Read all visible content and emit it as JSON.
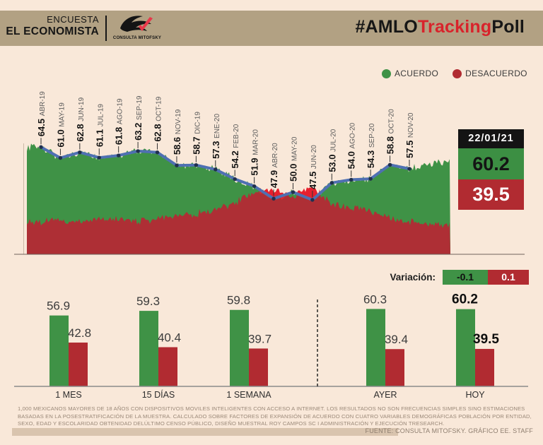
{
  "header": {
    "brand_top": "ENCUESTA",
    "brand_bottom": "EL ECONOMISTA",
    "logo_caption": "CONSULTA MITOFSKY",
    "hashtag": {
      "part1": "#AMLO",
      "part2": "Tracking",
      "part3": "Poll"
    }
  },
  "legend": [
    {
      "label": "ACUERDO",
      "color": "#3f9246"
    },
    {
      "label": "DESACUERDO",
      "color": "#b12b31"
    }
  ],
  "chart_data": {
    "type": "area",
    "title": "#AMLOTrackingPoll",
    "x": [
      "ABR-19",
      "MAY-19",
      "JUN-19",
      "JUL-19",
      "AGO-19",
      "SEP-19",
      "OCT-19",
      "NOV-19",
      "DIC-19",
      "ENE-20",
      "FEB-20",
      "MAR-20",
      "ABR-20",
      "MAY-20",
      "JUN-20",
      "JUL-20",
      "AGO-20",
      "SEP-20",
      "OCT-20",
      "NOV-20"
    ],
    "series": [
      {
        "name": "ACUERDO",
        "values": [
          64.5,
          61.0,
          62.8,
          61.1,
          61.8,
          63.2,
          62.8,
          58.6,
          58.7,
          57.3,
          54.2,
          51.9,
          47.9,
          50.0,
          47.5,
          53.0,
          54.0,
          54.3,
          58.8,
          57.5
        ]
      },
      {
        "name": "DESACUERDO",
        "values": [
          40.5,
          41.0,
          40.5,
          41.5,
          41.0,
          40.5,
          41.5,
          42.5,
          43.0,
          44.0,
          46.5,
          50.0,
          51.0,
          48.5,
          52.0,
          46.0,
          45.0,
          44.0,
          41.5,
          40.5
        ]
      }
    ],
    "end_values": {
      "acuerdo": 60.2,
      "desacuerdo": 39.5
    },
    "ylim": [
      30,
      70
    ],
    "legend_position": "top-right",
    "grid": false
  },
  "info_box": {
    "date": "22/01/21",
    "acuerdo": "60.2",
    "desacuerdo": "39.5"
  },
  "variation": {
    "label": "Variación:",
    "acuerdo": "-0.1",
    "desacuerdo": "0.1"
  },
  "bar_chart": {
    "type": "bar",
    "groups": [
      {
        "label": "1 MES",
        "acuerdo": 56.9,
        "desacuerdo": 42.8,
        "bold": false
      },
      {
        "label": "15 DÍAS",
        "acuerdo": 59.3,
        "desacuerdo": 40.4,
        "bold": false
      },
      {
        "label": "1 SEMANA",
        "acuerdo": 59.8,
        "desacuerdo": 39.7,
        "bold": false
      },
      {
        "label": "AYER",
        "acuerdo": 60.3,
        "desacuerdo": 39.4,
        "bold": false
      },
      {
        "label": "HOY",
        "acuerdo": 60.2,
        "desacuerdo": 39.5,
        "bold": true
      }
    ]
  },
  "footer": {
    "disclaimer_lines": [
      "1,000 MEXICANOS MAYORES DE 18 AÑOS CON DISPOSITIVOS MOVILES INTELIGENTES CON ACCESO A INTERNET. LOS RESULTADOS NO SON FRECUENCIAS SIMPLES SINO ESTIMACIONES",
      "BASADAS EN LA POSESTRATIFICACIÓN DE LA MUESTRA. CALCULADO SOBRE FACTORES DE EXPANSIÓN DE ACUERDO CON CUATRO VARIABLES DEMOGRÁFICAS POBLACIÓN POR ENTIDAD,",
      "SEXO, EDAD Y ESCOLARIDAD OBTENIDAD DELÚLTIMO CENSO PÚBLICO, DISEÑO MUESTRAL ROY CAMPOS SC I ADMINISTRACIÓN Y EJECUCIÓN TRESEARCH."
    ],
    "source": "FUENTE: CONSULTA MITOFSKY. GRÁFICO EE. STAFF"
  },
  "colors": {
    "background": "#f9e8d9",
    "header_bar": "#b2a183",
    "green": "#3f9246",
    "dark_red": "#ae2f35",
    "bright_red": "#e6202e",
    "line_blue": "#4f70b2",
    "dot_navy": "#20304f",
    "label_black": "#141414",
    "label_gray": "#5c5c5c",
    "baseline": "#6f625a"
  }
}
